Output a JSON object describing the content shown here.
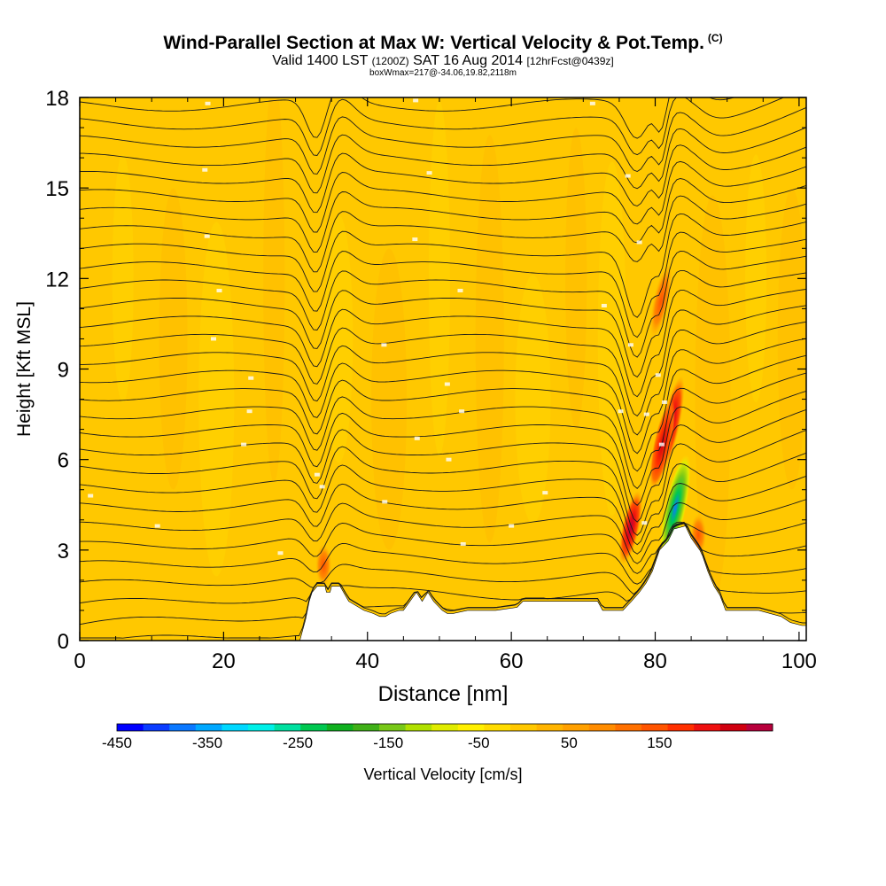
{
  "header": {
    "title": "Wind-Parallel Section at Max W: Vertical Velocity & Pot.Temp.",
    "title_flag": "(C)",
    "subtitle_a": "Valid 1400 LST",
    "subtitle_b": "(1200Z)",
    "subtitle_c": "SAT 16 Aug 2014",
    "subtitle_d": "[12hrFcst@0439z]",
    "subsub": "boxWmax=217@-34.06,19.82,2118m"
  },
  "chart_data": {
    "type": "heatmap",
    "title": "Wind-Parallel Section at Max W: Vertical Velocity & Pot.Temp.",
    "xlabel": "Distance [nm]",
    "ylabel": "Height [Kft MSL]",
    "xlim": [
      0,
      101
    ],
    "ylim": [
      0,
      18
    ],
    "x_ticks": [
      0,
      20,
      40,
      60,
      80,
      100
    ],
    "y_ticks": [
      0,
      3,
      6,
      9,
      12,
      15,
      18
    ],
    "grid": false,
    "colorbar": {
      "label": "Vertical Velocity [cm/s]",
      "placement": "bottom",
      "tick_labels": [
        -450,
        -350,
        -250,
        -150,
        -50,
        50,
        150
      ],
      "colors": [
        "#0000ff",
        "#0a3cff",
        "#0a78ff",
        "#00a8ff",
        "#00d8ff",
        "#00f0e8",
        "#00e0a0",
        "#00c850",
        "#10b020",
        "#40b018",
        "#78c818",
        "#b0e000",
        "#e0ec00",
        "#fff000",
        "#ffdc00",
        "#ffc800",
        "#ffb400",
        "#ffa000",
        "#ff8c00",
        "#ff7000",
        "#ff5400",
        "#ff3000",
        "#ee1010",
        "#d00010",
        "#b8003c"
      ]
    },
    "background_color": "#ffc800",
    "terrain_kft": [
      [
        0,
        0
      ],
      [
        30.6,
        0
      ],
      [
        31.4,
        0.7
      ],
      [
        31.9,
        1.3
      ],
      [
        32.3,
        1.6
      ],
      [
        33.0,
        1.8
      ],
      [
        34.1,
        1.8
      ],
      [
        34.3,
        1.6
      ],
      [
        34.8,
        1.6
      ],
      [
        35.0,
        1.8
      ],
      [
        36.2,
        1.8
      ],
      [
        37.4,
        1.3
      ],
      [
        39.5,
        1.0
      ],
      [
        40.8,
        0.9
      ],
      [
        41.7,
        0.8
      ],
      [
        42.5,
        0.8
      ],
      [
        43.2,
        0.9
      ],
      [
        44.4,
        1.0
      ],
      [
        45.0,
        1.0
      ],
      [
        45.9,
        1.3
      ],
      [
        46.8,
        1.6
      ],
      [
        47.6,
        1.3
      ],
      [
        48.4,
        1.6
      ],
      [
        49.2,
        1.3
      ],
      [
        50.4,
        1.0
      ],
      [
        51.1,
        0.9
      ],
      [
        51.9,
        0.9
      ],
      [
        53.9,
        1.0
      ],
      [
        57.8,
        1.0
      ],
      [
        60.8,
        1.1
      ],
      [
        61.6,
        1.3
      ],
      [
        72.0,
        1.3
      ],
      [
        72.7,
        1.0
      ],
      [
        75.5,
        1.0
      ],
      [
        76.7,
        1.3
      ],
      [
        77.8,
        1.6
      ],
      [
        78.7,
        1.9
      ],
      [
        79.6,
        2.3
      ],
      [
        80.6,
        3.0
      ],
      [
        81.8,
        3.3
      ],
      [
        82.6,
        3.7
      ],
      [
        84.2,
        3.8
      ],
      [
        85.0,
        3.4
      ],
      [
        86.2,
        3.0
      ],
      [
        86.6,
        2.8
      ],
      [
        87.3,
        2.3
      ],
      [
        88.2,
        1.8
      ],
      [
        89.0,
        1.5
      ],
      [
        89.8,
        1.0
      ],
      [
        94.4,
        1.0
      ],
      [
        97.5,
        0.8
      ],
      [
        98.8,
        0.6
      ],
      [
        100.4,
        0.5
      ],
      [
        101,
        0.5
      ]
    ],
    "w_features": [
      {
        "x": 82.2,
        "y_min": 5.5,
        "y_max": 8.8,
        "w_max": 217
      },
      {
        "x": 81.0,
        "y_min": 5.0,
        "y_max": 8.0,
        "w_max": 150
      },
      {
        "x": 76.6,
        "y_min": 2.5,
        "y_max": 5.0,
        "w_max": 190
      },
      {
        "x": 82.8,
        "y_min": 2.6,
        "y_max": 6.2,
        "w_min": -150
      },
      {
        "x": 33.9,
        "y_min": 1.8,
        "y_max": 3.2,
        "w_max": 110
      },
      {
        "x": 86.0,
        "y_min": 2.8,
        "y_max": 4.2,
        "w_max": 120
      },
      {
        "x": 80.8,
        "y_min": 10.0,
        "y_max": 12.5,
        "w_max": 90
      }
    ],
    "theta_label_points": [
      [
        1.5,
        4.8
      ],
      [
        10.8,
        3.8
      ],
      [
        27.9,
        2.9
      ],
      [
        33.0,
        5.5
      ],
      [
        33.7,
        5.1
      ],
      [
        42.4,
        4.6
      ],
      [
        53.3,
        3.2
      ],
      [
        60.0,
        3.8
      ],
      [
        64.7,
        4.9
      ],
      [
        51.3,
        6.0
      ],
      [
        46.9,
        6.7
      ],
      [
        53.1,
        7.6
      ],
      [
        51.1,
        8.5
      ],
      [
        42.3,
        9.8
      ],
      [
        22.8,
        6.5
      ],
      [
        23.6,
        7.6
      ],
      [
        23.8,
        8.7
      ],
      [
        18.6,
        10.0
      ],
      [
        19.4,
        11.6
      ],
      [
        17.7,
        13.4
      ],
      [
        17.4,
        15.6
      ],
      [
        17.8,
        17.8
      ],
      [
        46.7,
        17.9
      ],
      [
        71.3,
        17.8
      ],
      [
        48.6,
        15.5
      ],
      [
        76.2,
        15.4
      ],
      [
        46.6,
        13.3
      ],
      [
        77.8,
        13.2
      ],
      [
        52.9,
        11.6
      ],
      [
        72.9,
        11.1
      ],
      [
        76.6,
        9.8
      ],
      [
        75.2,
        7.6
      ],
      [
        78.8,
        7.5
      ],
      [
        80.4,
        8.8
      ],
      [
        80.9,
        6.5
      ],
      [
        81.3,
        7.9
      ],
      [
        78.5,
        3.9
      ]
    ]
  }
}
